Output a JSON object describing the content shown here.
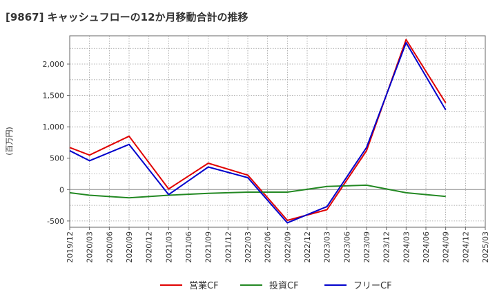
{
  "chart_data": {
    "type": "line",
    "title": "[9867]  キャッシュフローの12か月移動合計の推移",
    "ylabel": "(百万円)",
    "xlabel": "",
    "ylim": [
      -600,
      2450
    ],
    "yticks": [
      -500,
      0,
      500,
      1000,
      1500,
      2000
    ],
    "ytick_labels": [
      "-500",
      "0",
      "500",
      "1,000",
      "1,500",
      "2,000"
    ],
    "x_ticks": [
      "2019/12",
      "2020/03",
      "2020/06",
      "2020/09",
      "2020/12",
      "2021/03",
      "2021/06",
      "2021/09",
      "2021/12",
      "2022/03",
      "2022/06",
      "2022/09",
      "2022/12",
      "2023/03",
      "2023/06",
      "2023/09",
      "2023/12",
      "2024/03",
      "2024/06",
      "2024/09",
      "2024/12",
      "2025/03"
    ],
    "grid": true,
    "legend_position": "bottom",
    "series": [
      {
        "name": "営業CF",
        "color": "#e00000",
        "points": [
          {
            "x": "2019/12",
            "y": 670
          },
          {
            "x": "2020/03",
            "y": 550
          },
          {
            "x": "2020/09",
            "y": 850
          },
          {
            "x": "2021/03",
            "y": 10
          },
          {
            "x": "2021/09",
            "y": 420
          },
          {
            "x": "2022/03",
            "y": 230
          },
          {
            "x": "2022/09",
            "y": -490
          },
          {
            "x": "2023/03",
            "y": -320
          },
          {
            "x": "2023/09",
            "y": 620
          },
          {
            "x": "2024/03",
            "y": 2390
          },
          {
            "x": "2024/09",
            "y": 1380
          }
        ]
      },
      {
        "name": "投資CF",
        "color": "#228822",
        "points": [
          {
            "x": "2019/12",
            "y": -50
          },
          {
            "x": "2020/03",
            "y": -90
          },
          {
            "x": "2020/09",
            "y": -130
          },
          {
            "x": "2021/03",
            "y": -90
          },
          {
            "x": "2021/09",
            "y": -60
          },
          {
            "x": "2022/03",
            "y": -40
          },
          {
            "x": "2022/09",
            "y": -40
          },
          {
            "x": "2023/03",
            "y": 50
          },
          {
            "x": "2023/09",
            "y": 70
          },
          {
            "x": "2024/03",
            "y": -50
          },
          {
            "x": "2024/09",
            "y": -110
          }
        ]
      },
      {
        "name": "フリーCF",
        "color": "#0000cc",
        "points": [
          {
            "x": "2019/12",
            "y": 620
          },
          {
            "x": "2020/03",
            "y": 460
          },
          {
            "x": "2020/09",
            "y": 720
          },
          {
            "x": "2021/03",
            "y": -80
          },
          {
            "x": "2021/09",
            "y": 360
          },
          {
            "x": "2022/03",
            "y": 190
          },
          {
            "x": "2022/09",
            "y": -530
          },
          {
            "x": "2023/03",
            "y": -270
          },
          {
            "x": "2023/09",
            "y": 670
          },
          {
            "x": "2024/03",
            "y": 2340
          },
          {
            "x": "2024/09",
            "y": 1270
          }
        ]
      }
    ]
  }
}
